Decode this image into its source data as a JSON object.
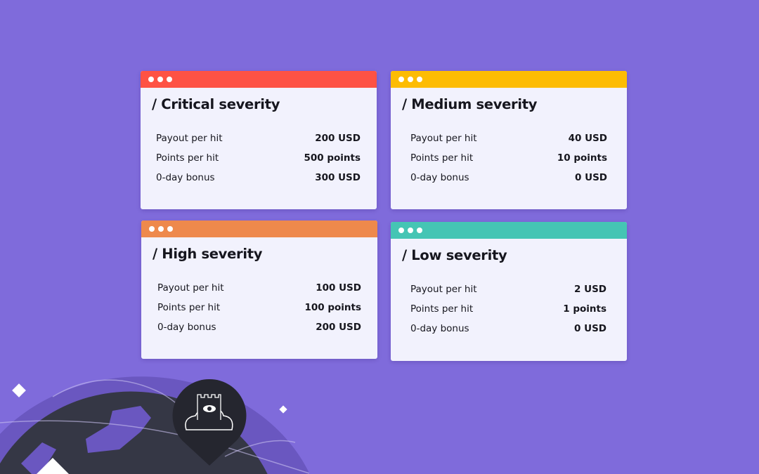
{
  "cards": [
    {
      "title": "/ Critical severity",
      "color": "#fe5244",
      "rows": [
        {
          "label": "Payout per hit",
          "value": "200 USD"
        },
        {
          "label": "Points per hit",
          "value": "500 points"
        },
        {
          "label": "0-day bonus",
          "value": "300 USD"
        }
      ]
    },
    {
      "title": "/ Medium severity",
      "color": "#fdbc03",
      "rows": [
        {
          "label": "Payout per hit",
          "value": "40 USD"
        },
        {
          "label": "Points per hit",
          "value": "10 points"
        },
        {
          "label": "0-day bonus",
          "value": "0 USD"
        }
      ]
    },
    {
      "title": "/ High severity",
      "color": "#ee894c",
      "rows": [
        {
          "label": "Payout per hit",
          "value": "100 USD"
        },
        {
          "label": "Points per hit",
          "value": "100 points"
        },
        {
          "label": "0-day bonus",
          "value": "200 USD"
        }
      ]
    },
    {
      "title": "/ Low severity",
      "color": "#45c5b4",
      "rows": [
        {
          "label": "Payout per hit",
          "value": "2 USD"
        },
        {
          "label": "Points per hit",
          "value": "1 points"
        },
        {
          "label": "0-day bonus",
          "value": "0 USD"
        }
      ]
    }
  ],
  "decoration": {
    "icon": "castle-cloud-eye-map-pin-icon",
    "background": "#7f6bdb"
  }
}
